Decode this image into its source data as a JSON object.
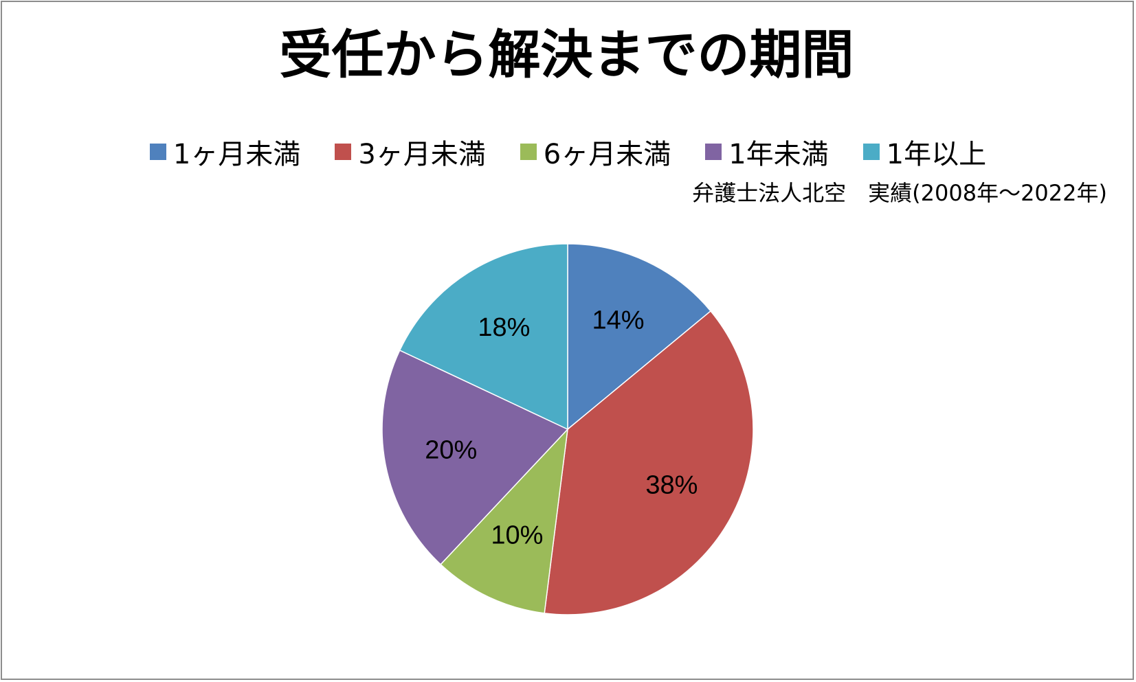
{
  "chart_data": {
    "type": "pie",
    "title": "受任から解決までの期間",
    "subtitle": "弁護士法人北空　実績(2008年～2022年)",
    "legend_position": "top",
    "categories": [
      "1ヶ月未満",
      "3ヶ月未満",
      "6ヶ月未満",
      "1年未満",
      "1年以上"
    ],
    "values": [
      14,
      38,
      10,
      20,
      18
    ],
    "data_labels": [
      "14%",
      "38%",
      "10%",
      "20%",
      "18%"
    ],
    "colors": [
      "#4f81bd",
      "#c0504d",
      "#9bbb59",
      "#8064a2",
      "#4bacc6"
    ]
  }
}
